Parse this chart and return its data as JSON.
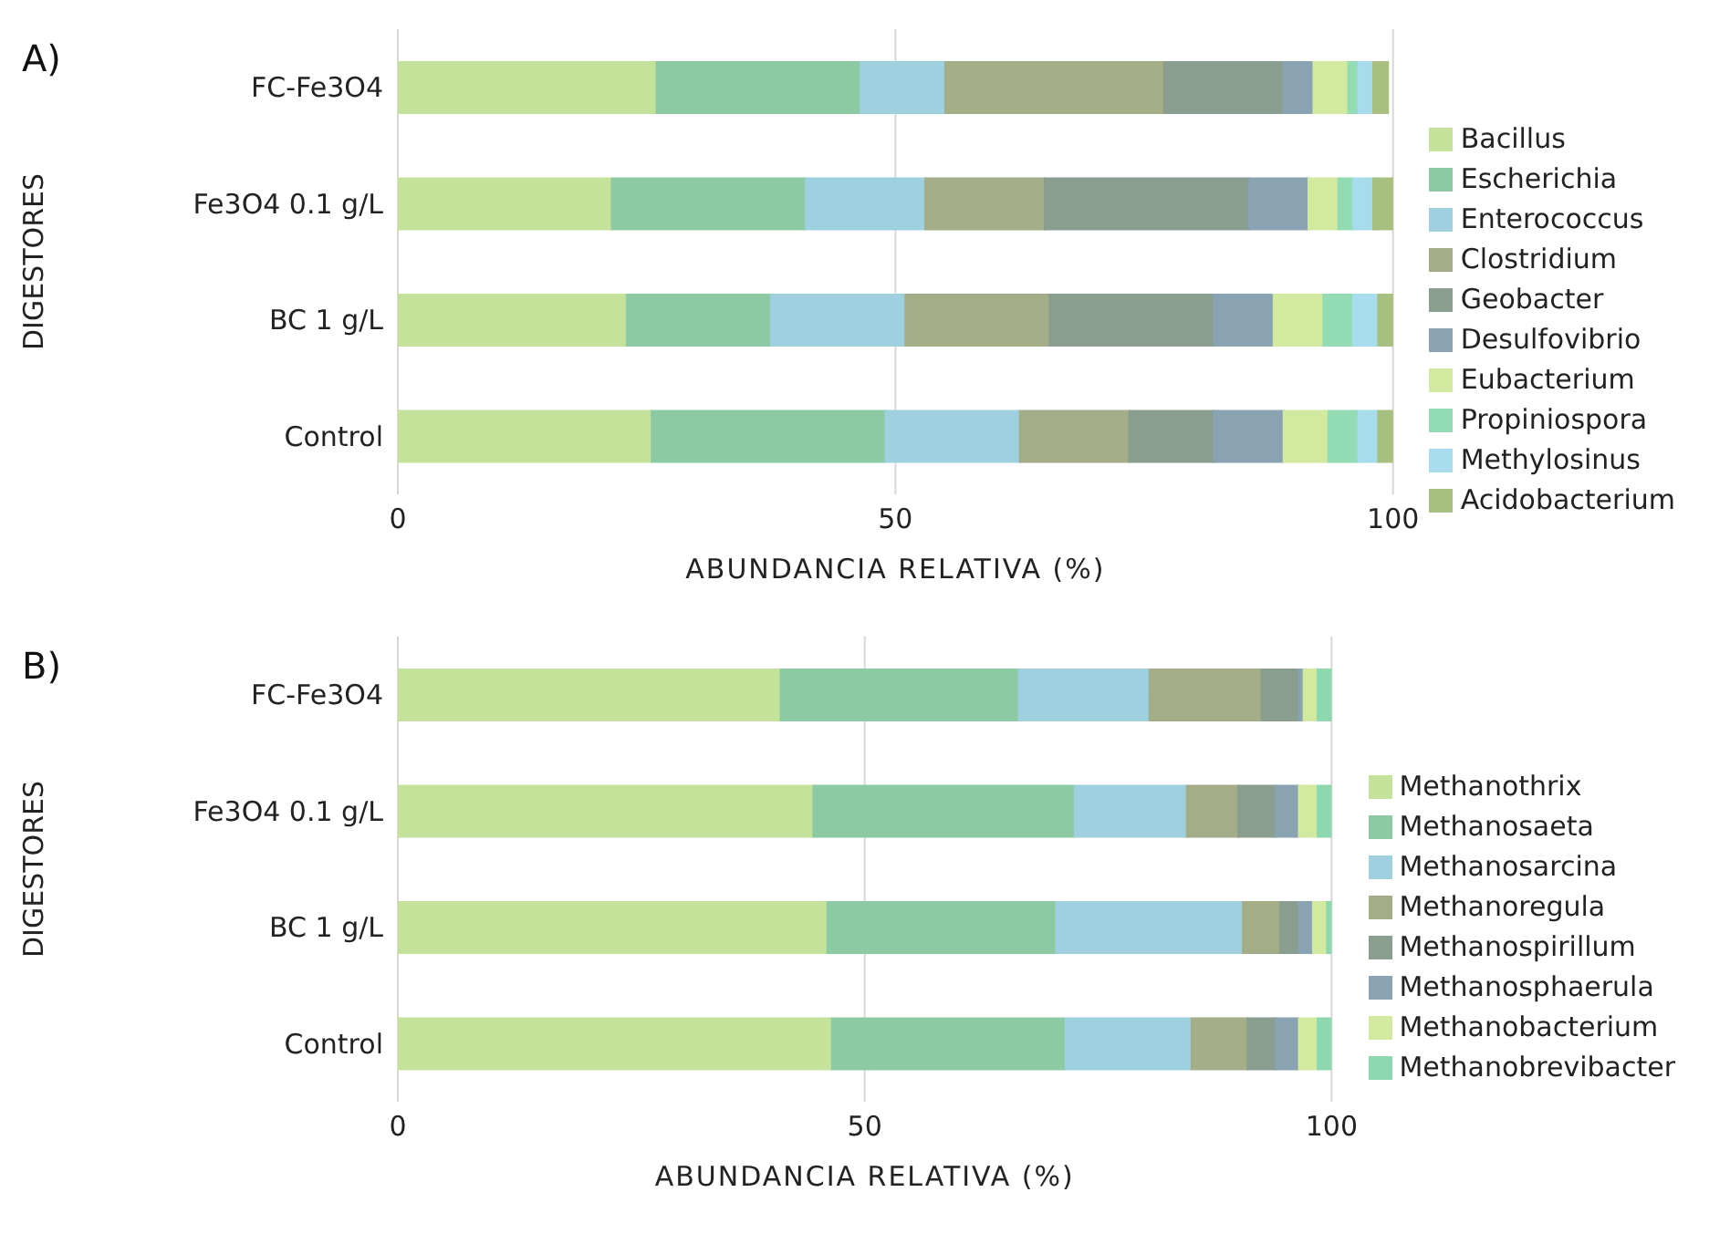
{
  "chart_data": [
    {
      "type": "bar",
      "title": "A)",
      "xlabel": "ABUNDANCIA RELATIVA (%)",
      "ylabel": "DIGESTORES",
      "orientation": "horizontal",
      "stacked": true,
      "categories": [
        "FC-Fe3O4",
        "Fe3O4 0.1 g/L",
        "BC 1 g/L",
        "Control"
      ],
      "xlim": [
        0,
        100
      ],
      "xticks": [
        0,
        50,
        100
      ],
      "grid": "x",
      "legend": "right",
      "series": [
        {
          "name": "Bacillus",
          "color": "#c5e29a",
          "values": [
            26,
            21.5,
            23,
            25.5
          ]
        },
        {
          "name": "Escherichia",
          "color": "#8ccaa3",
          "values": [
            20.5,
            19.5,
            14.5,
            23.5
          ]
        },
        {
          "name": "Enterococcus",
          "color": "#9fd0e0",
          "values": [
            8.5,
            12,
            13.5,
            13.5
          ]
        },
        {
          "name": "Clostridium",
          "color": "#a3ad87",
          "values": [
            22,
            12,
            14.5,
            11
          ]
        },
        {
          "name": "Geobacter",
          "color": "#8a9e90",
          "values": [
            12,
            20.5,
            16.5,
            8.5
          ]
        },
        {
          "name": "Desulfovibrio",
          "color": "#8aa3b3",
          "values": [
            3,
            6,
            6,
            7
          ]
        },
        {
          "name": "Eubacterium",
          "color": "#d2eaa0",
          "values": [
            3.5,
            3,
            5,
            4.5
          ]
        },
        {
          "name": "Propiniospora",
          "color": "#93dbb3",
          "values": [
            1,
            1.5,
            3,
            3
          ]
        },
        {
          "name": "Methylosinus",
          "color": "#a6dcec",
          "values": [
            1.5,
            2,
            2.5,
            2
          ]
        },
        {
          "name": "Acidobacterium",
          "color": "#a8c07f",
          "values": [
            1.5,
            2,
            1.5,
            1.5
          ]
        }
      ]
    },
    {
      "type": "bar",
      "title": "B)",
      "xlabel": "ABUNDANCIA RELATIVA (%)",
      "ylabel": "DIGESTORES",
      "orientation": "horizontal",
      "stacked": true,
      "categories": [
        "FC-Fe3O4",
        "Fe3O4 0.1 g/L",
        "BC 1 g/L",
        "Control"
      ],
      "xlim": [
        0,
        100
      ],
      "xticks": [
        0,
        50,
        100
      ],
      "grid": "x",
      "legend": "right",
      "series": [
        {
          "name": "Methanothrix",
          "color": "#c5e29a",
          "values": [
            41,
            44.5,
            46,
            46.5
          ]
        },
        {
          "name": "Methanosaeta",
          "color": "#8ccaa3",
          "values": [
            25.5,
            28,
            24.5,
            25
          ]
        },
        {
          "name": "Methanosarcina",
          "color": "#9fd0e0",
          "values": [
            14,
            12,
            20,
            13.5
          ]
        },
        {
          "name": "Methanoregula",
          "color": "#a3ad87",
          "values": [
            12,
            5.5,
            4,
            6
          ]
        },
        {
          "name": "Methanospirillum",
          "color": "#8a9e90",
          "values": [
            4,
            4,
            2,
            3
          ]
        },
        {
          "name": "Methanosphaerula",
          "color": "#8aa3b3",
          "values": [
            0.5,
            2.5,
            1.5,
            2.5
          ]
        },
        {
          "name": "Methanobacterium",
          "color": "#d2eaa0",
          "values": [
            1.5,
            2,
            1.5,
            2
          ]
        },
        {
          "name": "Methanobrevibacter",
          "color": "#8ed8b0",
          "values": [
            1.5,
            1.5,
            0.5,
            1.5
          ]
        }
      ]
    }
  ]
}
